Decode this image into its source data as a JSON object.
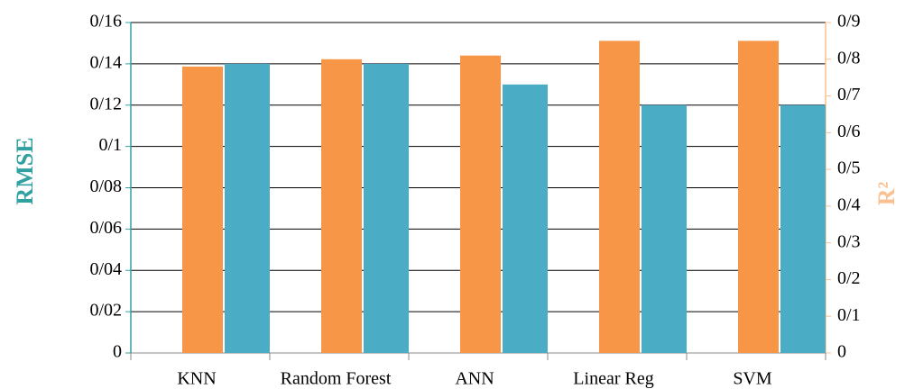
{
  "chart_data": {
    "type": "bar",
    "y_label": "RMSE",
    "y2_label": "R²",
    "categories": [
      "KNN",
      "Random Forest",
      "ANN",
      "Linear Reg",
      "SVM"
    ],
    "series": [
      {
        "color": "#f79646",
        "axis": "y2",
        "values": [
          0.78,
          0.8,
          0.81,
          0.85,
          0.85
        ]
      },
      {
        "color": "#4bacc6",
        "values": [
          0.14,
          0.14,
          0.13,
          0.12,
          0.12
        ]
      }
    ],
    "ylim": [
      0,
      0.16
    ],
    "yticks": [
      0,
      {
        "value": 0.02,
        "label": "0/02"
      },
      {
        "value": 0.04,
        "label": "0/04"
      },
      {
        "value": 0.06,
        "label": "0/06"
      },
      {
        "value": 0.08,
        "label": "0/08"
      },
      {
        "value": 0.1,
        "label": "0/1"
      },
      {
        "value": 0.12,
        "label": "0/12"
      },
      {
        "value": 0.14,
        "label": "0/14"
      },
      {
        "value": 0.16,
        "label": "0/16"
      }
    ],
    "y2lim": [
      0,
      0.9
    ],
    "y2ticks": [
      0,
      {
        "value": 0.1,
        "label": "0/1"
      },
      {
        "value": 0.2,
        "label": "0/2"
      },
      {
        "value": 0.3,
        "label": "0/3"
      },
      {
        "value": 0.4,
        "label": "0/4"
      },
      {
        "value": 0.5,
        "label": "0/5"
      },
      {
        "value": 0.6,
        "label": "0/6"
      },
      {
        "value": 0.7,
        "label": "0/7"
      },
      {
        "value": 0.8,
        "label": "0/8"
      },
      {
        "value": 0.9,
        "label": "0/9"
      }
    ],
    "y_axis_color": "#31a0a0",
    "y2_axis_color": "#fac090",
    "grid": true
  }
}
